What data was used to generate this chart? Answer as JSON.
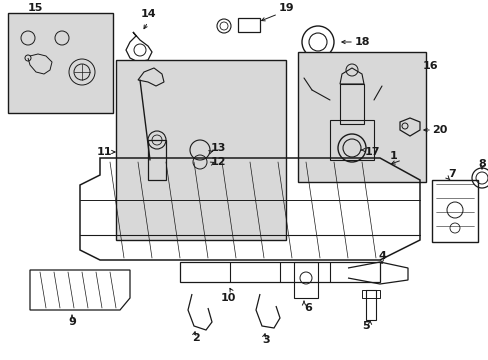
{
  "bg": "#ffffff",
  "lc": "#1a1a1a",
  "lf": "#d8d8d8",
  "fig_w": 4.89,
  "fig_h": 3.6,
  "dpi": 100
}
